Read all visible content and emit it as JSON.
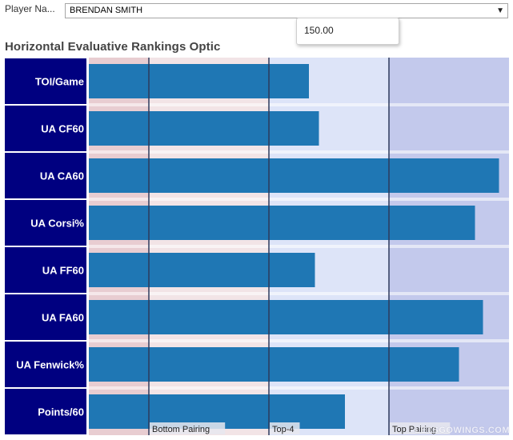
{
  "header": {
    "player_label": "Player Na...",
    "player_value": "BRENDAN SMITH",
    "tooltip_value": "150.00"
  },
  "title": "Horizontal Evaluative Rankings Optic",
  "watermark": "LETSGOWINGS.COM",
  "colors": {
    "category_bg": "#000080",
    "bar": "#1f77b4",
    "band_low": "#f2e4e6",
    "band_low_strip": "#e8cdd1",
    "band_mid": "#dde4f8",
    "band_high": "#c3c9ec",
    "divider": "#2d3a5c"
  },
  "chart_data": {
    "type": "bar",
    "orientation": "horizontal",
    "categories": [
      "TOI/Game",
      "UA CF60",
      "UA CA60",
      "UA Corsi%",
      "UA FF60",
      "UA FA60",
      "UA Fenwick%",
      "Points/60"
    ],
    "values": [
      110,
      115,
      205,
      193,
      113,
      197,
      185,
      128
    ],
    "xlim": [
      0,
      210
    ],
    "bands": [
      {
        "label": "Bottom Pairing",
        "start": 30,
        "end": 90
      },
      {
        "label": "Top-4",
        "start": 90,
        "end": 150
      },
      {
        "label": "Top Pairing",
        "start": 150,
        "end": 210
      }
    ],
    "legend": "none",
    "grid": false
  }
}
